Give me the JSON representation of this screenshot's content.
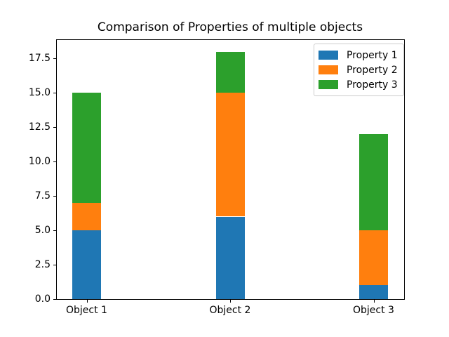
{
  "chart_data": {
    "type": "bar",
    "stacked": true,
    "title": "Comparison of Properties of multiple objects",
    "categories": [
      "Object 1",
      "Object 2",
      "Object 3"
    ],
    "series": [
      {
        "name": "Property 1",
        "color": "#1f77b4",
        "values": [
          5,
          6,
          1
        ]
      },
      {
        "name": "Property 2",
        "color": "#ff7f0e",
        "values": [
          2,
          9,
          4
        ]
      },
      {
        "name": "Property 3",
        "color": "#2ca02c",
        "values": [
          8,
          3,
          7
        ]
      }
    ],
    "totals": [
      15,
      18,
      12
    ],
    "xlabel": "",
    "ylabel": "",
    "ylim": [
      0,
      18.9
    ],
    "yticks": [
      0.0,
      2.5,
      5.0,
      7.5,
      10.0,
      12.5,
      15.0,
      17.5
    ],
    "ytick_labels": [
      "0.0",
      "2.5",
      "5.0",
      "7.5",
      "10.0",
      "12.5",
      "15.0",
      "17.5"
    ],
    "grid": false,
    "legend_position": "upper right",
    "background_color": "#ffffff",
    "frame_color": "#000000"
  }
}
